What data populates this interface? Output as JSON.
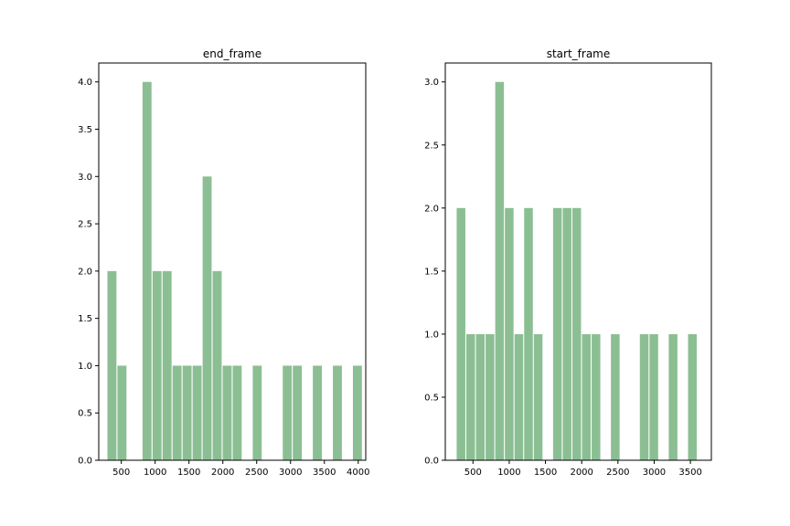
{
  "chart_data": [
    {
      "type": "bar",
      "title": "end_frame",
      "xlabel": "",
      "ylabel": "",
      "xlim": [
        167,
        4111
      ],
      "ylim": [
        0,
        4.2
      ],
      "xticks": [
        500,
        1000,
        1500,
        2000,
        2500,
        3000,
        3500,
        4000
      ],
      "yticks": [
        0.0,
        0.5,
        1.0,
        1.5,
        2.0,
        2.5,
        3.0,
        3.5,
        4.0
      ],
      "xtick_labels": [
        "500",
        "1000",
        "1500",
        "2000",
        "2500",
        "3000",
        "3500",
        "4000"
      ],
      "ytick_labels": [
        "0.0",
        "0.5",
        "1.0",
        "1.5",
        "2.0",
        "2.5",
        "3.0",
        "3.5",
        "4.0"
      ],
      "bin_width": 148,
      "bar_fill_fraction": 0.9,
      "bins": [
        {
          "x": 362,
          "value": 2
        },
        {
          "x": 510,
          "value": 1
        },
        {
          "x": 880,
          "value": 4
        },
        {
          "x": 1028,
          "value": 2
        },
        {
          "x": 1176,
          "value": 2
        },
        {
          "x": 1324,
          "value": 1
        },
        {
          "x": 1472,
          "value": 1
        },
        {
          "x": 1620,
          "value": 1
        },
        {
          "x": 1768,
          "value": 3
        },
        {
          "x": 1916,
          "value": 2
        },
        {
          "x": 2064,
          "value": 1
        },
        {
          "x": 2212,
          "value": 1
        },
        {
          "x": 2508,
          "value": 1
        },
        {
          "x": 2952,
          "value": 1
        },
        {
          "x": 3100,
          "value": 1
        },
        {
          "x": 3396,
          "value": 1
        },
        {
          "x": 3692,
          "value": 1
        },
        {
          "x": 3988,
          "value": 1
        }
      ],
      "grid": false,
      "color": "#8bbf93"
    },
    {
      "type": "bar",
      "title": "start_frame",
      "xlabel": "",
      "ylabel": "",
      "xlim": [
        118,
        3789
      ],
      "ylim": [
        0,
        3.15
      ],
      "xticks": [
        500,
        1000,
        1500,
        2000,
        2500,
        3000,
        3500
      ],
      "yticks": [
        0.0,
        0.5,
        1.0,
        1.5,
        2.0,
        2.5,
        3.0
      ],
      "xtick_labels": [
        "500",
        "1000",
        "1500",
        "2000",
        "2500",
        "3000",
        "3500"
      ],
      "ytick_labels": [
        "0.0",
        "0.5",
        "1.0",
        "1.5",
        "2.0",
        "2.5",
        "3.0"
      ],
      "bin_width": 133,
      "bar_fill_fraction": 0.9,
      "bins": [
        {
          "x": 335,
          "value": 2
        },
        {
          "x": 468,
          "value": 1
        },
        {
          "x": 601,
          "value": 1
        },
        {
          "x": 734,
          "value": 1
        },
        {
          "x": 867,
          "value": 3
        },
        {
          "x": 1000,
          "value": 2
        },
        {
          "x": 1133,
          "value": 1
        },
        {
          "x": 1266,
          "value": 2
        },
        {
          "x": 1399,
          "value": 1
        },
        {
          "x": 1798,
          "value": 2
        },
        {
          "x": 1665,
          "value": 2
        },
        {
          "x": 1931,
          "value": 2
        },
        {
          "x": 2064,
          "value": 1
        },
        {
          "x": 2197,
          "value": 1
        },
        {
          "x": 2463,
          "value": 1
        },
        {
          "x": 2862,
          "value": 1
        },
        {
          "x": 2995,
          "value": 1
        },
        {
          "x": 3261,
          "value": 1
        },
        {
          "x": 3527,
          "value": 1
        }
      ],
      "grid": false,
      "color": "#8bbf93"
    }
  ]
}
